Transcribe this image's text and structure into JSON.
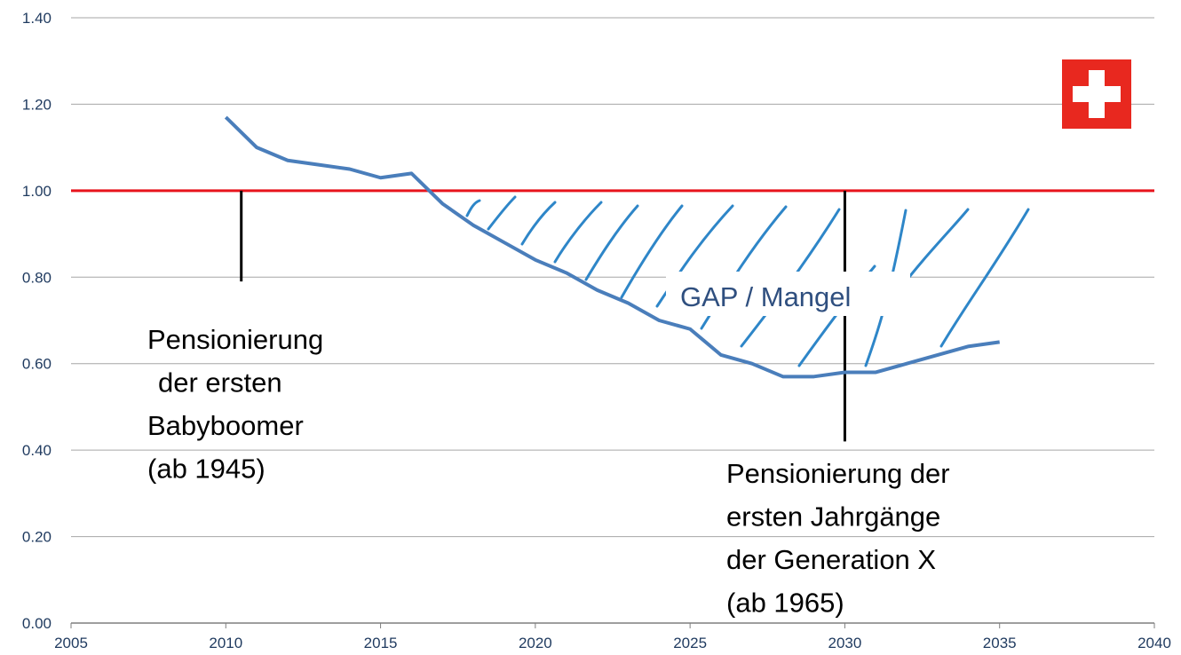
{
  "chart_data": {
    "type": "line",
    "x": [
      2010,
      2011,
      2012,
      2013,
      2014,
      2015,
      2016,
      2017,
      2018,
      2019,
      2020,
      2021,
      2022,
      2023,
      2024,
      2025,
      2026,
      2027,
      2028,
      2029,
      2030,
      2031,
      2032,
      2033,
      2034,
      2035
    ],
    "series": [
      {
        "color": "#4a7ebb",
        "values": [
          1.17,
          1.1,
          1.07,
          1.06,
          1.05,
          1.03,
          1.04,
          0.97,
          0.92,
          0.88,
          0.84,
          0.81,
          0.77,
          0.74,
          0.7,
          0.68,
          0.62,
          0.6,
          0.57,
          0.57,
          0.58,
          0.58,
          0.6,
          0.62,
          0.64,
          0.65
        ]
      }
    ],
    "xlim": [
      2005,
      2040
    ],
    "xticks": [
      2005,
      2010,
      2015,
      2020,
      2025,
      2030,
      2035,
      2040
    ],
    "ylim": [
      0,
      1.4
    ],
    "yticks": [
      {
        "value": 0,
        "label": "0.00"
      },
      {
        "value": 0.2,
        "label": "0.20"
      },
      {
        "value": 0.4,
        "label": "0.40"
      },
      {
        "value": 0.6,
        "label": "0.60"
      },
      {
        "value": 0.8,
        "label": "0.80"
      },
      {
        "value": 1.0,
        "label": "1.00"
      },
      {
        "value": 1.2,
        "label": "1.20"
      },
      {
        "value": 1.4,
        "label": "1.40"
      }
    ],
    "grid": true,
    "reference_line": {
      "value": 1.0,
      "color": "#e8141c"
    },
    "markers": [
      {
        "x": 2010.5,
        "y": [
          0.79,
          1.0
        ]
      },
      {
        "x": 2030,
        "y": [
          0.42,
          1.0
        ]
      }
    ],
    "annotations": [
      {
        "lines": [
          "Pensionierung",
          "der ersten",
          "Babyboomer",
          "(ab 1945)"
        ]
      },
      {
        "lines": [
          "Pensionierung der",
          "ersten Jahrgänge",
          "der Generation X",
          "(ab 1965)"
        ]
      },
      {
        "lines": [
          "GAP / Mangel"
        ]
      }
    ]
  }
}
